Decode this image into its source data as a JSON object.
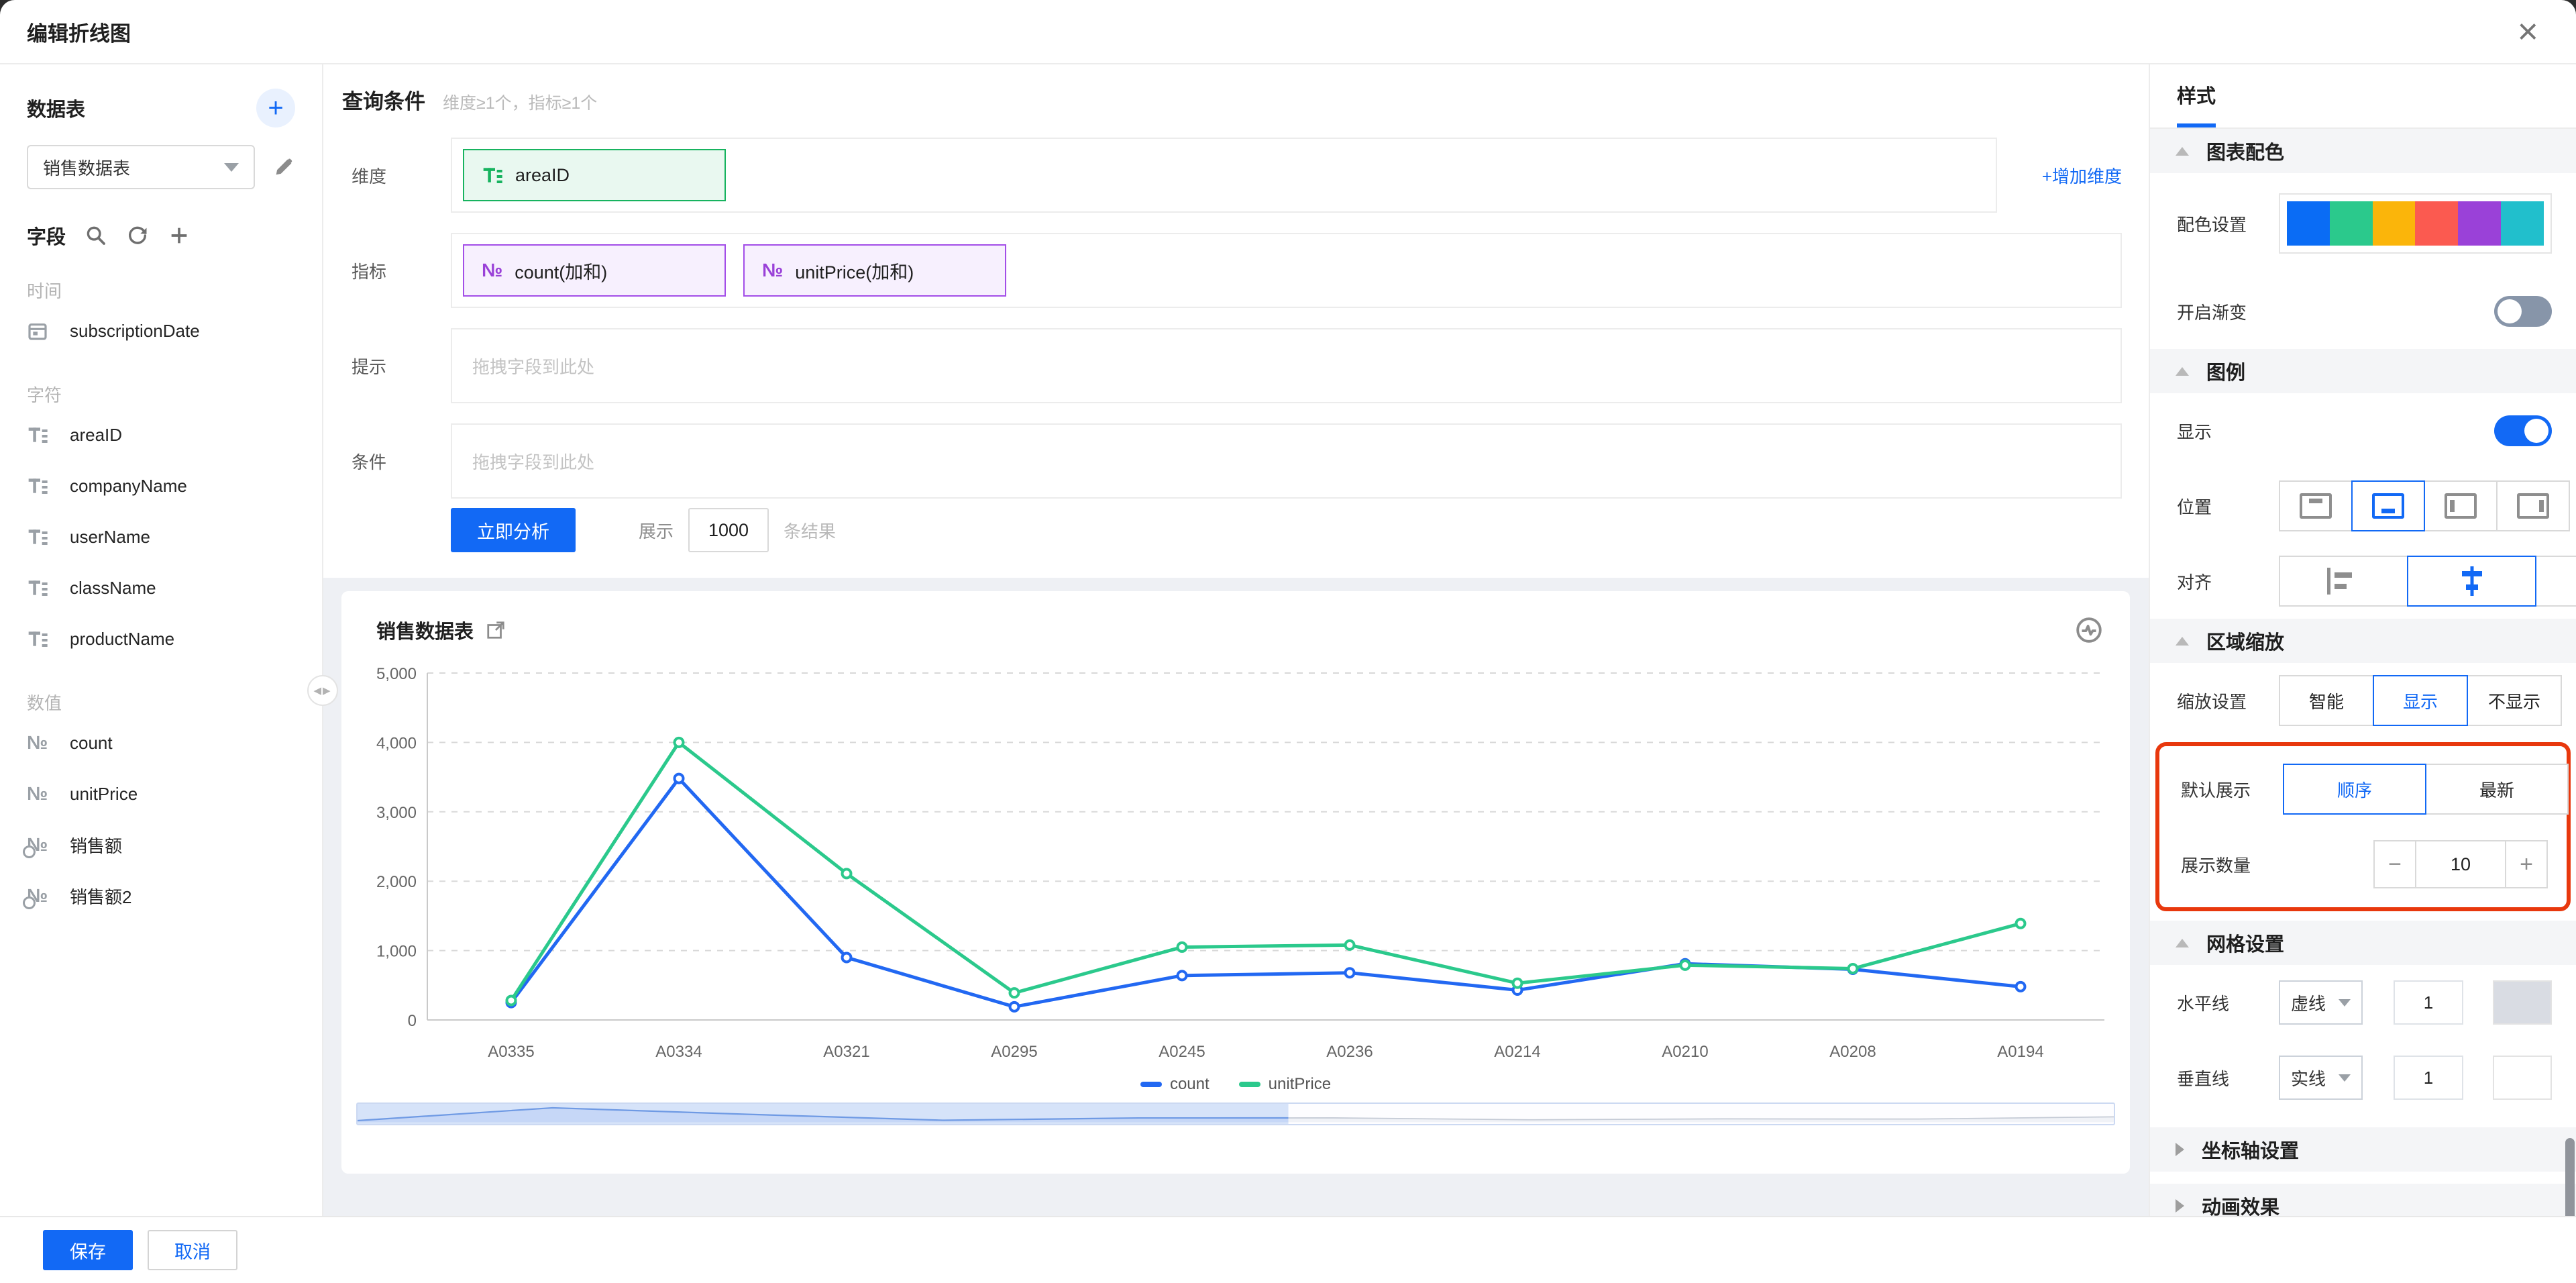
{
  "modal": {
    "title": "编辑折线图"
  },
  "icons": {
    "close": "×",
    "add": "+",
    "minus": "−",
    "plus": "+",
    "number_type": "№",
    "handle": "◀▶"
  },
  "sidebar": {
    "datasource_label": "数据表",
    "datasource_value": "销售数据表",
    "fields_label": "字段",
    "groups": [
      {
        "label": "时间",
        "items": [
          {
            "name": "subscriptionDate",
            "type": "date"
          }
        ]
      },
      {
        "label": "字符",
        "items": [
          {
            "name": "areaID",
            "type": "text"
          },
          {
            "name": "companyName",
            "type": "text"
          },
          {
            "name": "userName",
            "type": "text"
          },
          {
            "name": "className",
            "type": "text"
          },
          {
            "name": "productName",
            "type": "text"
          }
        ]
      },
      {
        "label": "数值",
        "items": [
          {
            "name": "count",
            "type": "number"
          },
          {
            "name": "unitPrice",
            "type": "number"
          },
          {
            "name": "销售额",
            "type": "number-calc"
          },
          {
            "name": "销售额2",
            "type": "number-calc"
          }
        ]
      }
    ]
  },
  "query": {
    "title": "查询条件",
    "subtitle": "维度≥1个，指标≥1个",
    "dimension_label": "维度",
    "dimension_tag": "areaID",
    "add_dimension": "+增加维度",
    "metric_label": "指标",
    "metric_tags": [
      "count(加和)",
      "unitPrice(加和)"
    ],
    "hint_label": "提示",
    "hint_placeholder": "拖拽字段到此处",
    "filter_label": "条件",
    "filter_placeholder": "拖拽字段到此处",
    "analyze_button": "立即分析",
    "limit_prefix": "展示",
    "limit_value": "1000",
    "limit_suffix": "条结果"
  },
  "chart_card": {
    "title": "销售数据表"
  },
  "chart_data": {
    "type": "line",
    "title": "销售数据表",
    "categories": [
      "A0335",
      "A0334",
      "A0321",
      "A0295",
      "A0245",
      "A0236",
      "A0214",
      "A0210",
      "A0208",
      "A0194"
    ],
    "series": [
      {
        "name": "count",
        "color": "#2268f2",
        "values": [
          250,
          3480,
          900,
          190,
          640,
          680,
          430,
          810,
          730,
          480
        ]
      },
      {
        "name": "unitPrice",
        "color": "#2bc98c",
        "values": [
          280,
          4000,
          2110,
          390,
          1050,
          1080,
          530,
          790,
          740,
          1390
        ]
      }
    ],
    "xlabel": "",
    "ylabel": "",
    "ylim": [
      0,
      5000
    ],
    "y_ticks": [
      "0",
      "1,000",
      "2,000",
      "3,000",
      "4,000",
      "5,000"
    ],
    "grid": "dashed-horizontal",
    "legend_position": "bottom-center",
    "datazoom": {
      "selected_fraction": 0.53
    }
  },
  "style_panel": {
    "tab": "样式",
    "sections": {
      "colors": {
        "title": "图表配色",
        "palette_label": "配色设置",
        "palette": [
          "#0a6cf5",
          "#2bc98c",
          "#fbb50a",
          "#fb5a50",
          "#9a41d8",
          "#21bfcc"
        ],
        "gradient_label": "开启渐变",
        "gradient_on": false
      },
      "legend": {
        "title": "图例",
        "show_label": "显示",
        "show_on": true,
        "position_label": "位置",
        "position_selected": 1,
        "align_label": "对齐",
        "align_selected": 1
      },
      "zoom": {
        "title": "区域缩放",
        "setting_label": "缩放设置",
        "setting_options": [
          "智能",
          "显示",
          "不显示"
        ],
        "setting_selected": 1,
        "default_label": "默认展示",
        "default_options": [
          "顺序",
          "最新"
        ],
        "default_selected": 0,
        "count_label": "展示数量",
        "count_value": "10"
      },
      "grid": {
        "title": "网格设置",
        "h_label": "水平线",
        "h_style": "虚线",
        "h_width": "1",
        "h_color": "#d9dce3",
        "v_label": "垂直线",
        "v_style": "实线",
        "v_width": "1",
        "v_color": "#ffffff"
      },
      "axis": {
        "title": "坐标轴设置"
      },
      "anim": {
        "title": "动画效果"
      }
    }
  },
  "footer": {
    "save": "保存",
    "cancel": "取消"
  },
  "annotation_color": "#e8380d"
}
